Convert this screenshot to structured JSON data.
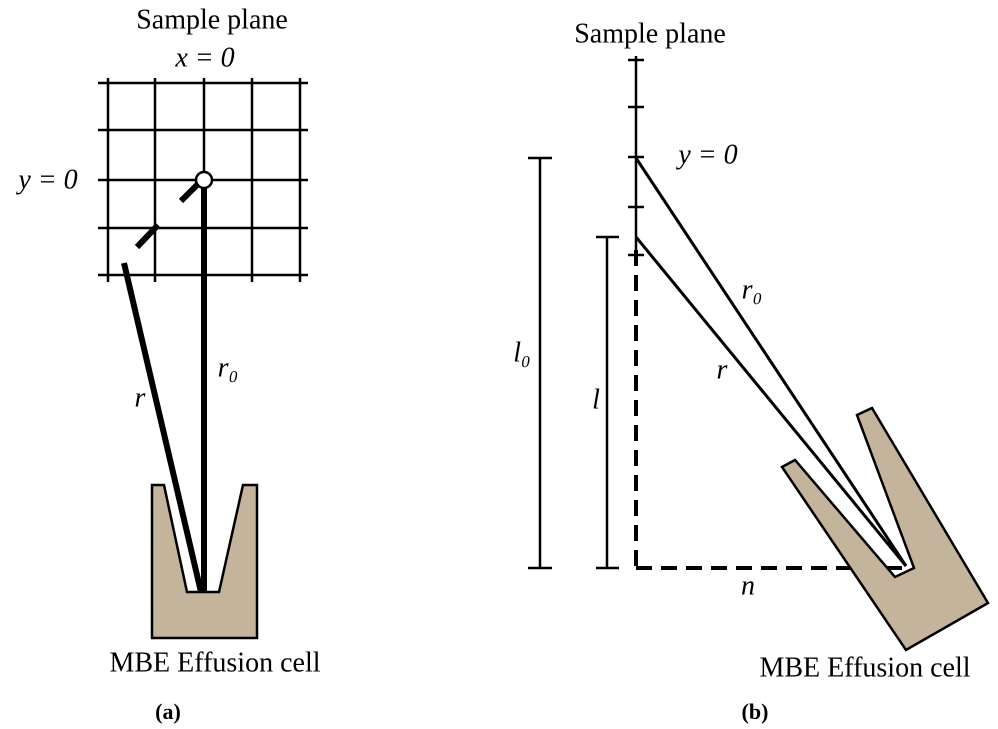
{
  "panel_a": {
    "title": "Sample plane",
    "x_label": "x = 0",
    "y_label": "y = 0",
    "r0_label": "r₀",
    "r_label": "r",
    "cell_label": "MBE Effusion cell",
    "caption": "(a)"
  },
  "panel_b": {
    "title": "Sample plane",
    "y_label": "y = 0",
    "r0_label": "r₀",
    "r_label": "r",
    "l0_label": "l₀",
    "l_label": "l",
    "n_label": "n",
    "cell_label": "MBE Effusion cell",
    "caption": "(b)"
  }
}
